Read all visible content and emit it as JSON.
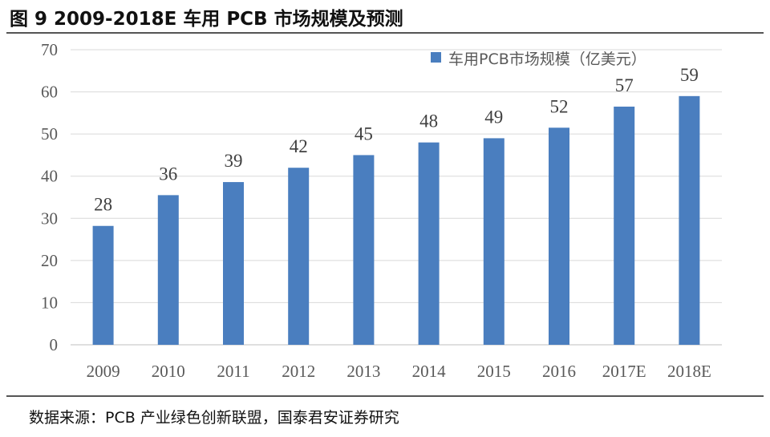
{
  "title": "图 9 2009-2018E 车用 PCB 市场规模及预测",
  "source": "数据来源：PCB 产业绿色创新联盟，国泰君安证券研究",
  "chart_data": {
    "type": "bar",
    "categories": [
      "2009",
      "2010",
      "2011",
      "2012",
      "2013",
      "2014",
      "2015",
      "2016",
      "2017E",
      "2018E"
    ],
    "series": [
      {
        "name": "车用PCB市场规模（亿美元）",
        "values": [
          28.2,
          35.5,
          38.6,
          42,
          45,
          48,
          49,
          51.5,
          56.5,
          59
        ],
        "data_labels": [
          "28",
          "36",
          "39",
          "42",
          "45",
          "48",
          "49",
          "52",
          "57",
          "59"
        ],
        "color": "#4a7ebf"
      }
    ],
    "ylim": [
      0,
      70
    ],
    "yticks": [
      "0",
      "10",
      "20",
      "30",
      "40",
      "50",
      "60",
      "70"
    ],
    "grid": true,
    "legend": "top-right"
  }
}
